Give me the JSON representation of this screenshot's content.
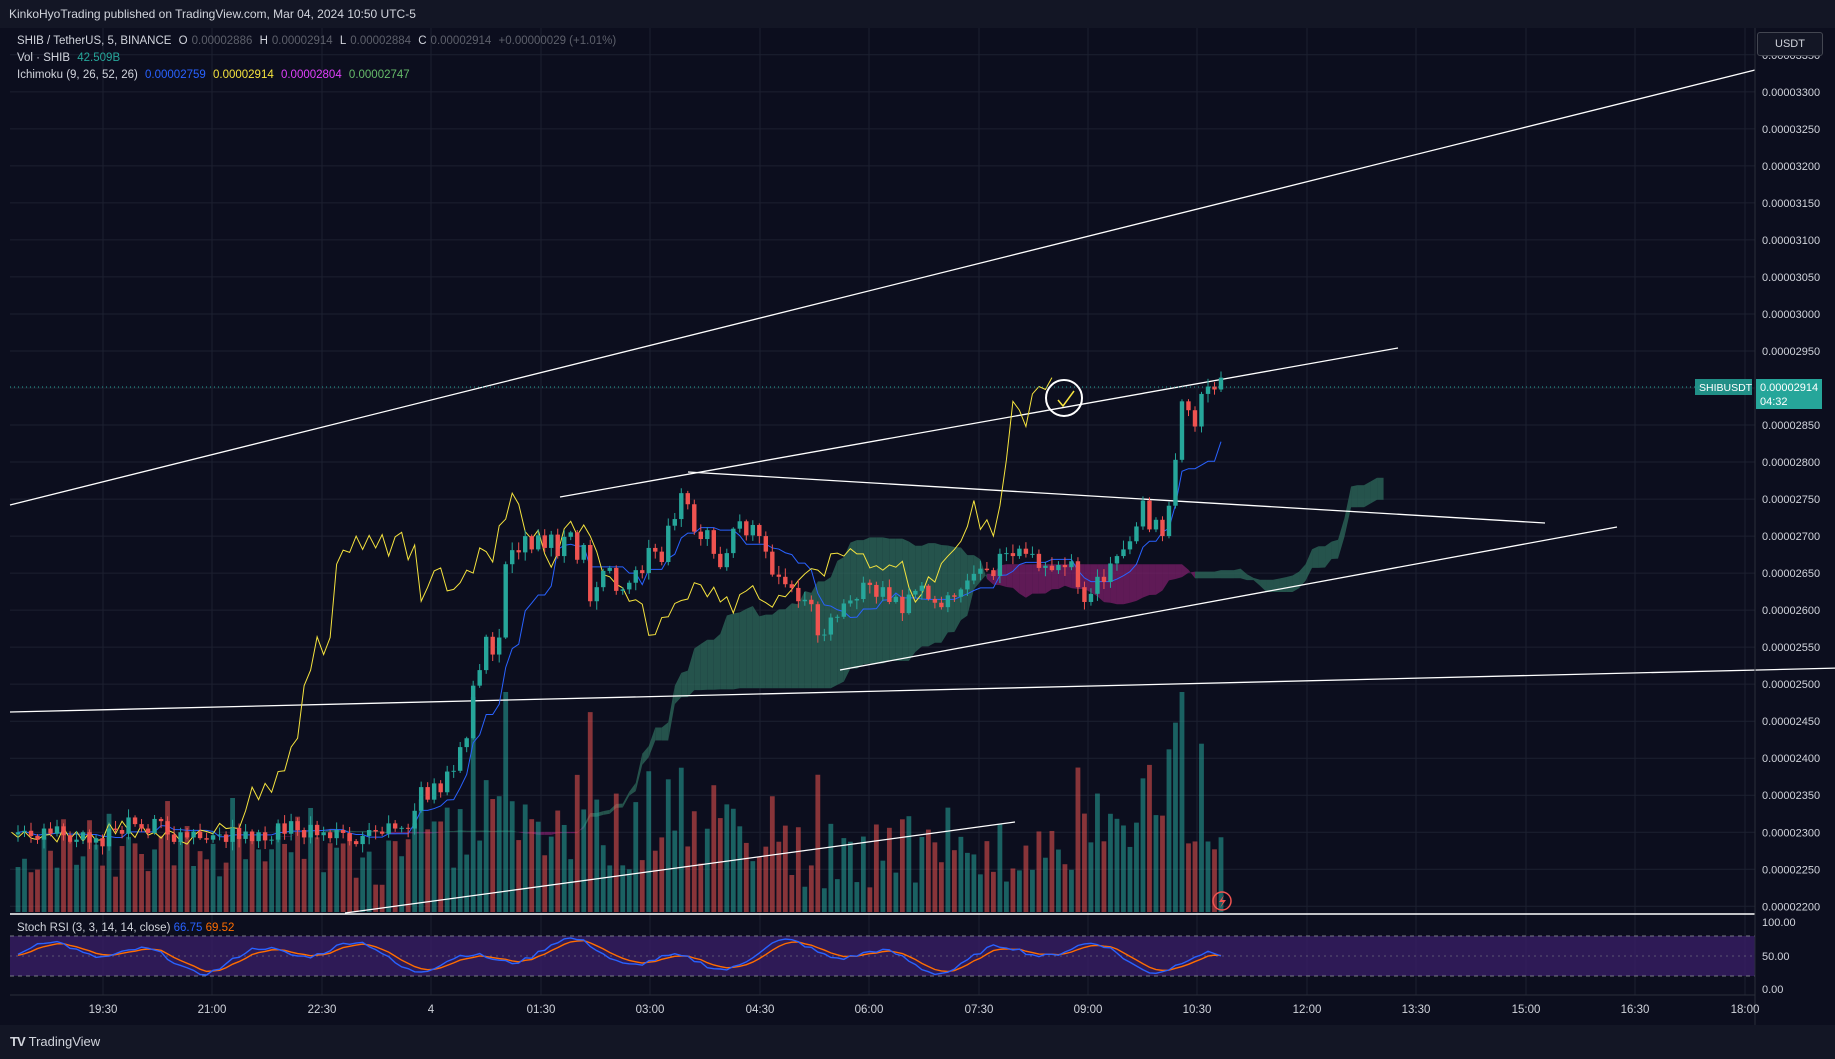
{
  "header": {
    "publisher": "KinkoHyoTrading published on TradingView.com, Mar 04, 2024 10:50 UTC-5"
  },
  "legend": {
    "symbol": "SHIB / TetherUS, 5, BINANCE",
    "o_label": "O",
    "o_value": "0.00002886",
    "h_label": "H",
    "h_value": "0.00002914",
    "l_label": "L",
    "l_value": "0.00002884",
    "c_label": "C",
    "c_value": "0.00002914",
    "change": "+0.00000029 (+1.01%)",
    "vol_label": "Vol · SHIB",
    "vol_value": "42.509B",
    "ichimoku_label": "Ichimoku (9, 26, 52, 26)",
    "ichi_values": [
      "0.00002759",
      "0.00002914",
      "0.00002804",
      "0.00002747"
    ],
    "stoch_label": "Stoch RSI (3, 3, 14, 14, close)",
    "stoch_k": "66.75",
    "stoch_d": "69.52"
  },
  "price_axis": {
    "currency_button": "USDT"
  },
  "last_price": {
    "symbol_tag": "SHIBUSDT",
    "price": "0.00002914",
    "countdown": "04:32"
  },
  "colors": {
    "bg": "#0c0e1e",
    "up": "#26a69a",
    "down": "#ef5350",
    "tenkan": "#2962ff",
    "chikou": "#f5e33e",
    "kumo_bear": "#7b1f6a",
    "kumo_bull": "#2e6b5c",
    "stoch_k": "#2962ff",
    "stoch_d": "#ff6d00",
    "stoch_band": "#3d1f6e"
  },
  "footer": {
    "brand": "TradingView",
    "logo": "TV"
  },
  "chart_data": {
    "type": "candlestick",
    "title": "SHIB / TetherUS, 5, BINANCE",
    "y_ticks": [
      "0.00003350",
      "0.00003300",
      "0.00003250",
      "0.00003200",
      "0.00003150",
      "0.00003100",
      "0.00003050",
      "0.00003000",
      "0.00002950",
      "0.00002900",
      "0.00002850",
      "0.00002800",
      "0.00002750",
      "0.00002700",
      "0.00002650",
      "0.00002600",
      "0.00002550",
      "0.00002500",
      "0.00002450",
      "0.00002400",
      "0.00002350",
      "0.00002300",
      "0.00002250",
      "0.00002200"
    ],
    "x_ticks": [
      "19:30",
      "21:00",
      "22:30",
      "4",
      "01:30",
      "03:00",
      "04:30",
      "06:00",
      "07:30",
      "09:00",
      "10:30",
      "12:00",
      "13:30",
      "15:00",
      "16:30",
      "18:00"
    ],
    "ylim_e8": [
      2195,
      3370
    ],
    "close_e8": [
      2300,
      2302,
      2295,
      2290,
      2305,
      2298,
      2308,
      2296,
      2287,
      2290,
      2300,
      2286,
      2292,
      2281,
      2305,
      2303,
      2298,
      2320,
      2311,
      2305,
      2299,
      2318,
      2315,
      2297,
      2287,
      2300,
      2293,
      2301,
      2292,
      2290,
      2296,
      2297,
      2287,
      2306,
      2291,
      2301,
      2288,
      2300,
      2289,
      2290,
      2312,
      2298,
      2315,
      2303,
      2293,
      2310,
      2296,
      2300,
      2292,
      2303,
      2299,
      2288,
      2284,
      2295,
      2303,
      2301,
      2298,
      2312,
      2305,
      2306,
      2305,
      2329,
      2361,
      2344,
      2366,
      2354,
      2382,
      2383,
      2415,
      2427,
      2498,
      2519,
      2564,
      2540,
      2563,
      2662,
      2681,
      2678,
      2700,
      2682,
      2701,
      2684,
      2702,
      2673,
      2699,
      2705,
      2668,
      2688,
      2612,
      2631,
      2653,
      2657,
      2626,
      2628,
      2637,
      2654,
      2650,
      2684,
      2679,
      2665,
      2714,
      2723,
      2758,
      2743,
      2706,
      2696,
      2708,
      2676,
      2658,
      2677,
      2710,
      2720,
      2701,
      2715,
      2700,
      2679,
      2648,
      2645,
      2635,
      2630,
      2612,
      2614,
      2608,
      2566,
      2567,
      2590,
      2591,
      2609,
      2613,
      2615,
      2637,
      2634,
      2618,
      2631,
      2611,
      2618,
      2596,
      2621,
      2626,
      2633,
      2615,
      2610,
      2604,
      2620,
      2618,
      2628,
      2640,
      2649,
      2656,
      2654,
      2646,
      2676,
      2677,
      2673,
      2683,
      2676,
      2676,
      2657,
      2660,
      2654,
      2661,
      2658,
      2666,
      2631,
      2611,
      2622,
      2645,
      2638,
      2663,
      2673,
      2682,
      2693,
      2713,
      2748,
      2709,
      2722,
      2700,
      2741,
      2803,
      2882,
      2870,
      2848,
      2892,
      2902,
      2898,
      2914
    ]
  }
}
